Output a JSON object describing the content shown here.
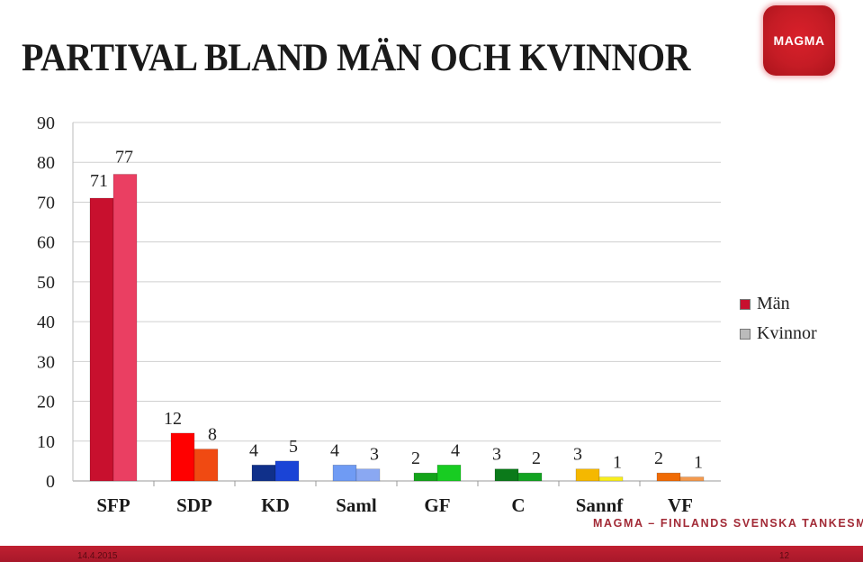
{
  "slide": {
    "title": "PARTIVAL BLAND MÄN OCH KVINNOR",
    "logo_text": "MAGMA",
    "tagline": "MAGMA – FINLANDS SVENSKA TANKESMEDJA",
    "date": "14.4.2015",
    "page_number": "12"
  },
  "chart_data": {
    "type": "bar",
    "title": "",
    "xlabel": "",
    "ylabel": "",
    "categories": [
      "SFP",
      "SDP",
      "KD",
      "Saml",
      "GF",
      "C",
      "Sannf",
      "VF"
    ],
    "series": [
      {
        "name": "Män",
        "values": [
          71,
          12,
          4,
          4,
          2,
          3,
          3,
          2
        ]
      },
      {
        "name": "Kvinnor",
        "values": [
          77,
          8,
          5,
          3,
          4,
          2,
          1,
          1
        ]
      }
    ],
    "bar_colors": [
      [
        "#c8102e",
        "#ea3f62"
      ],
      [
        "#ff0000",
        "#f04a12"
      ],
      [
        "#10308a",
        "#1a44d6"
      ],
      [
        "#6f9bf4",
        "#8aa8f2"
      ],
      [
        "#14a41a",
        "#18cc22"
      ],
      [
        "#0b7a1a",
        "#13a322"
      ],
      [
        "#f5b800",
        "#f8ee1c"
      ],
      [
        "#f06b05",
        "#f39a4e"
      ]
    ],
    "legend_colors": [
      "#c8102e",
      "#bbbbbb"
    ],
    "yticks": [
      0,
      10,
      20,
      30,
      40,
      50,
      60,
      70,
      80,
      90
    ],
    "ylim": [
      0,
      90
    ],
    "grid": true,
    "legend_position": "right",
    "data_labels": true
  }
}
